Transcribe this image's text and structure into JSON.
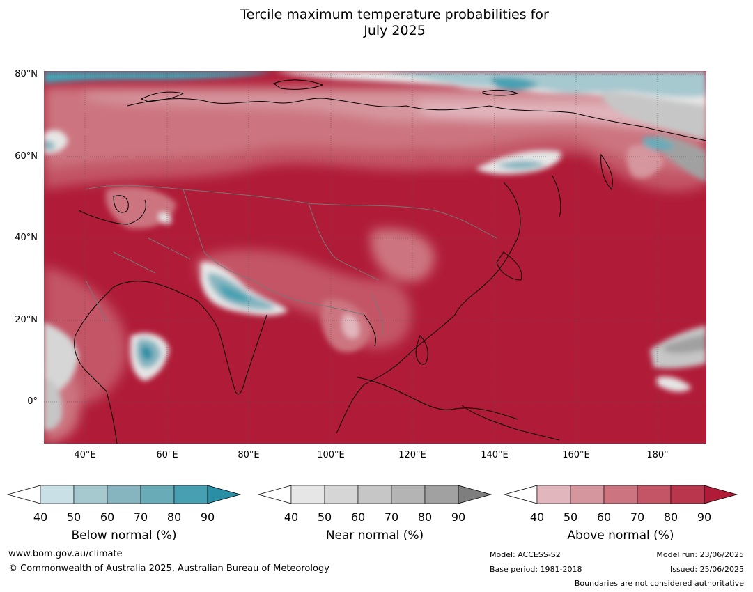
{
  "title_line1": "Tercile maximum temperature probabilities for",
  "title_line2": "July 2025",
  "lat_labels": [
    "80°N",
    "60°N",
    "40°N",
    "20°N",
    "0°"
  ],
  "lon_labels": [
    "40°E",
    "60°E",
    "80°E",
    "100°E",
    "120°E",
    "140°E",
    "160°E",
    "180°"
  ],
  "colorbars": [
    {
      "name": "below",
      "title": "Below normal (%)",
      "ticks": [
        "40",
        "50",
        "60",
        "70",
        "80",
        "90"
      ],
      "colors": [
        "#ffffff",
        "#c8e0e6",
        "#a6c8cf",
        "#86b5c0",
        "#6aabb8",
        "#47a0b2",
        "#2a8ea4"
      ]
    },
    {
      "name": "near",
      "title": "Near normal (%)",
      "ticks": [
        "40",
        "50",
        "60",
        "70",
        "80",
        "90"
      ],
      "colors": [
        "#ffffff",
        "#e6e6e6",
        "#d6d6d6",
        "#c6c6c6",
        "#b4b4b4",
        "#a1a1a1",
        "#7e7e7e"
      ]
    },
    {
      "name": "above",
      "title": "Above normal (%)",
      "ticks": [
        "40",
        "50",
        "60",
        "70",
        "80",
        "90"
      ],
      "colors": [
        "#ffffff",
        "#e2b6bd",
        "#d6969e",
        "#cc7580",
        "#c35566",
        "#b9364c",
        "#b01c38"
      ]
    }
  ],
  "footer": {
    "website": "www.bom.gov.au/climate",
    "copyright": "© Commonwealth of Australia 2025, Australian Bureau of Meteorology",
    "model": "Model: ACCESS-S2",
    "base_period": "Base period: 1981-2018",
    "model_run": "Model run: 23/06/2025",
    "issued": "Issued: 25/06/2025",
    "disclaimer": "Boundaries are not considered authoritative"
  }
}
